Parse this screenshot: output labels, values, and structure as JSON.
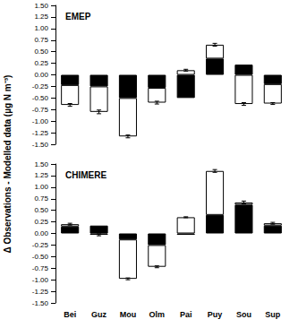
{
  "y_label": "Δ Observations - Modelled data (µg N m⁻³)",
  "chart_data": [
    {
      "type": "bar",
      "title": "EMEP",
      "stacked": true,
      "tick_labels": "y",
      "categories": [
        "Bei",
        "Guz",
        "Mou",
        "Olm",
        "Pai",
        "Puy",
        "Sou",
        "Sup"
      ],
      "series": [
        {
          "color": "#000000",
          "values": [
            -0.22,
            -0.25,
            -0.5,
            -0.28,
            -0.5,
            0.35,
            0.22,
            -0.2
          ]
        },
        {
          "color": "#ffffff",
          "values": [
            -0.43,
            -0.55,
            -0.83,
            -0.32,
            0.1,
            0.3,
            -0.63,
            -0.42
          ],
          "errors": [
            0.03,
            0.04,
            0.03,
            0.03,
            0.02,
            0.03,
            0.03,
            0.02
          ]
        }
      ],
      "ylim": [
        -1.5,
        1.5
      ],
      "yticks": [
        {
          "value": -1.5,
          "label": "-1.50"
        },
        {
          "value": -1.25,
          "label": "-1.25"
        },
        {
          "value": -1.0,
          "label": "-1.00"
        },
        {
          "value": -0.75,
          "label": "-0.75"
        },
        {
          "value": -0.5,
          "label": "-0.50"
        },
        {
          "value": -0.25,
          "label": "-0.25"
        },
        {
          "value": 0,
          "label": "0.00"
        },
        {
          "value": 0.25,
          "label": "0.25"
        },
        {
          "value": 0.5,
          "label": "0.50"
        },
        {
          "value": 0.75,
          "label": "0.75"
        },
        {
          "value": 1.0,
          "label": "1.00"
        },
        {
          "value": 1.25,
          "label": "1.25"
        },
        {
          "value": 1.5,
          "label": "1.50"
        }
      ],
      "grid": false
    },
    {
      "type": "bar",
      "title": "CHIMERE",
      "stacked": true,
      "categories": [
        "Bei",
        "Guz",
        "Mou",
        "Olm",
        "Pai",
        "Puy",
        "Sou",
        "Sup"
      ],
      "series": [
        {
          "color": "#000000",
          "values": [
            0.15,
            0.17,
            -0.13,
            -0.25,
            -0.03,
            0.4,
            0.62,
            0.17
          ]
        },
        {
          "color": "#ffffff",
          "values": [
            0.05,
            -0.03,
            -0.85,
            -0.47,
            0.35,
            0.95,
            0.05,
            0.05
          ],
          "errors": [
            0.02,
            0.02,
            0.02,
            0.02,
            0.01,
            0.03,
            0.03,
            0.02
          ]
        }
      ],
      "ylim": [
        -1.5,
        1.5
      ],
      "yticks": [
        {
          "value": -1.5,
          "label": "-1.50"
        },
        {
          "value": -1.25,
          "label": "-1.25"
        },
        {
          "value": -1.0,
          "label": "-1.00"
        },
        {
          "value": -0.75,
          "label": "-0.75"
        },
        {
          "value": -0.5,
          "label": "-0.50"
        },
        {
          "value": -0.25,
          "label": "-0.25"
        },
        {
          "value": 0,
          "label": "0.00"
        },
        {
          "value": 0.25,
          "label": "0.25"
        },
        {
          "value": 0.5,
          "label": "0.50"
        },
        {
          "value": 0.75,
          "label": "0.75"
        },
        {
          "value": 1.0,
          "label": "1.00"
        },
        {
          "value": 1.25,
          "label": "1.25"
        },
        {
          "value": 1.5,
          "label": "1.50"
        }
      ],
      "grid": false
    }
  ]
}
